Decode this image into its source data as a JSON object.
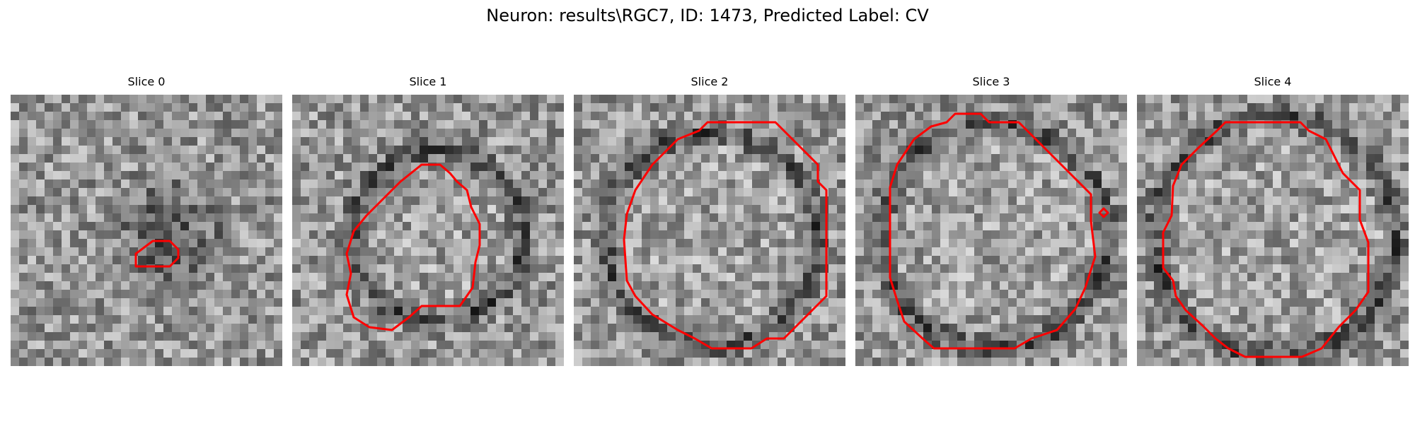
{
  "figure": {
    "title": "Neuron: results\\RGC7, ID: 1473, Predicted Label: CV",
    "panels": [
      {
        "title": "Slice 0"
      },
      {
        "title": "Slice 1"
      },
      {
        "title": "Slice 2"
      },
      {
        "title": "Slice 3"
      },
      {
        "title": "Slice 4"
      }
    ]
  },
  "colors": {
    "contour": "#ff0000",
    "background": "#ffffff"
  }
}
